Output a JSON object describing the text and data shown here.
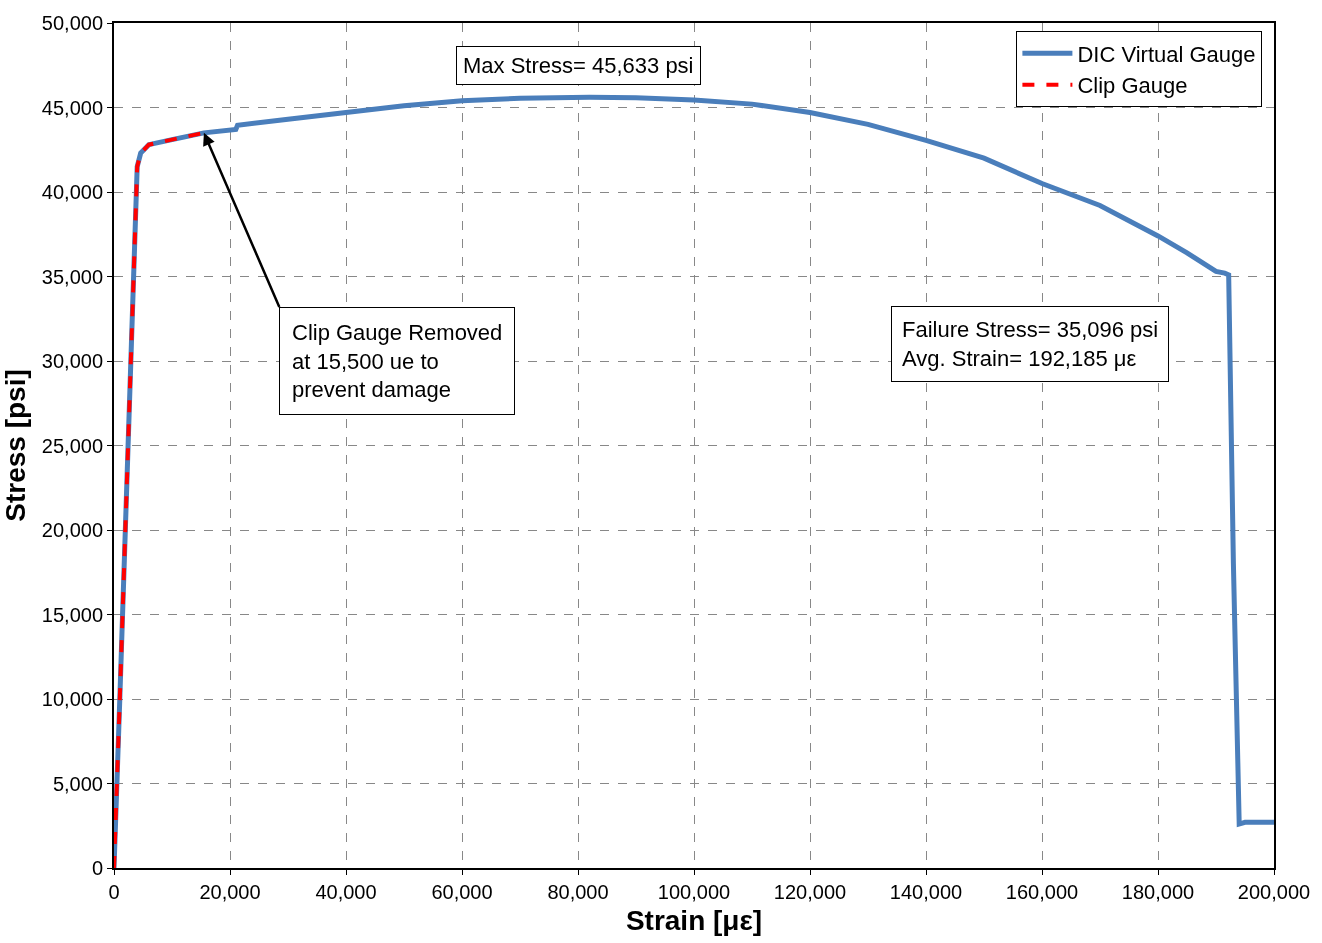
{
  "chart_data": {
    "type": "line",
    "xlabel": "Strain [με]",
    "ylabel": "Stress [psi]",
    "xlim": [
      0,
      200000
    ],
    "xticks": [
      {
        "value": 0,
        "label": "0"
      },
      {
        "value": 20000,
        "label": "20,000"
      },
      {
        "value": 40000,
        "label": "40,000"
      },
      {
        "value": 60000,
        "label": "60,000"
      },
      {
        "value": 80000,
        "label": "80,000"
      },
      {
        "value": 100000,
        "label": "100,000"
      },
      {
        "value": 120000,
        "label": "120,000"
      },
      {
        "value": 140000,
        "label": "140,000"
      },
      {
        "value": 160000,
        "label": "160,000"
      },
      {
        "value": 180000,
        "label": "180,000"
      },
      {
        "value": 200000,
        "label": "200,000"
      }
    ],
    "ylim": [
      0,
      50000
    ],
    "yticks": [
      {
        "value": 0,
        "label": "0"
      },
      {
        "value": 5000,
        "label": "5,000"
      },
      {
        "value": 10000,
        "label": "10,000"
      },
      {
        "value": 15000,
        "label": "15,000"
      },
      {
        "value": 20000,
        "label": "20,000"
      },
      {
        "value": 25000,
        "label": "25,000"
      },
      {
        "value": 30000,
        "label": "30,000"
      },
      {
        "value": 35000,
        "label": "35,000"
      },
      {
        "value": 40000,
        "label": "40,000"
      },
      {
        "value": 45000,
        "label": "45,000"
      },
      {
        "value": 50000,
        "label": "50,000"
      }
    ],
    "grid": true,
    "legend": "top right",
    "marker": "none",
    "series": [
      {
        "name": "DIC Virtual Gauge",
        "color": "#4a7ebb",
        "line_style": "solid",
        "x": [
          0,
          1000,
          2000,
          3000,
          4000,
          4600,
          6000,
          10000,
          15500,
          21000,
          21300,
          30000,
          40000,
          50000,
          60000,
          70000,
          82000,
          90000,
          100000,
          110000,
          120000,
          130000,
          140000,
          150000,
          160000,
          170000,
          180000,
          185000,
          190000,
          191500,
          192185,
          193000,
          194000,
          195000,
          200000
        ],
        "values": [
          0,
          10000,
          20500,
          31000,
          41500,
          42300,
          42800,
          43100,
          43500,
          43700,
          43950,
          44300,
          44700,
          45100,
          45400,
          45550,
          45600,
          45580,
          45450,
          45200,
          44700,
          44000,
          43050,
          42000,
          40500,
          39200,
          37400,
          36400,
          35300,
          35200,
          35100,
          18000,
          2600,
          2700,
          2700
        ]
      },
      {
        "name": "Clip Gauge",
        "color": "#ff0000",
        "line_style": "dashed",
        "x": [
          0,
          1000,
          2000,
          3000,
          4000,
          4600,
          6000,
          10000,
          15500
        ],
        "values": [
          0,
          10000,
          20500,
          31000,
          41500,
          42300,
          42800,
          43100,
          43500
        ]
      }
    ],
    "annotations": [
      "Max Stress= 45,633 psi",
      {
        "text": "Clip Gauge Removed\nat 15,500 ue to\nprevent damage",
        "x": 15500,
        "y": 43500
      },
      "Failure Stress= 35,096 psi\nAvg. Strain= 192,185 με"
    ]
  }
}
